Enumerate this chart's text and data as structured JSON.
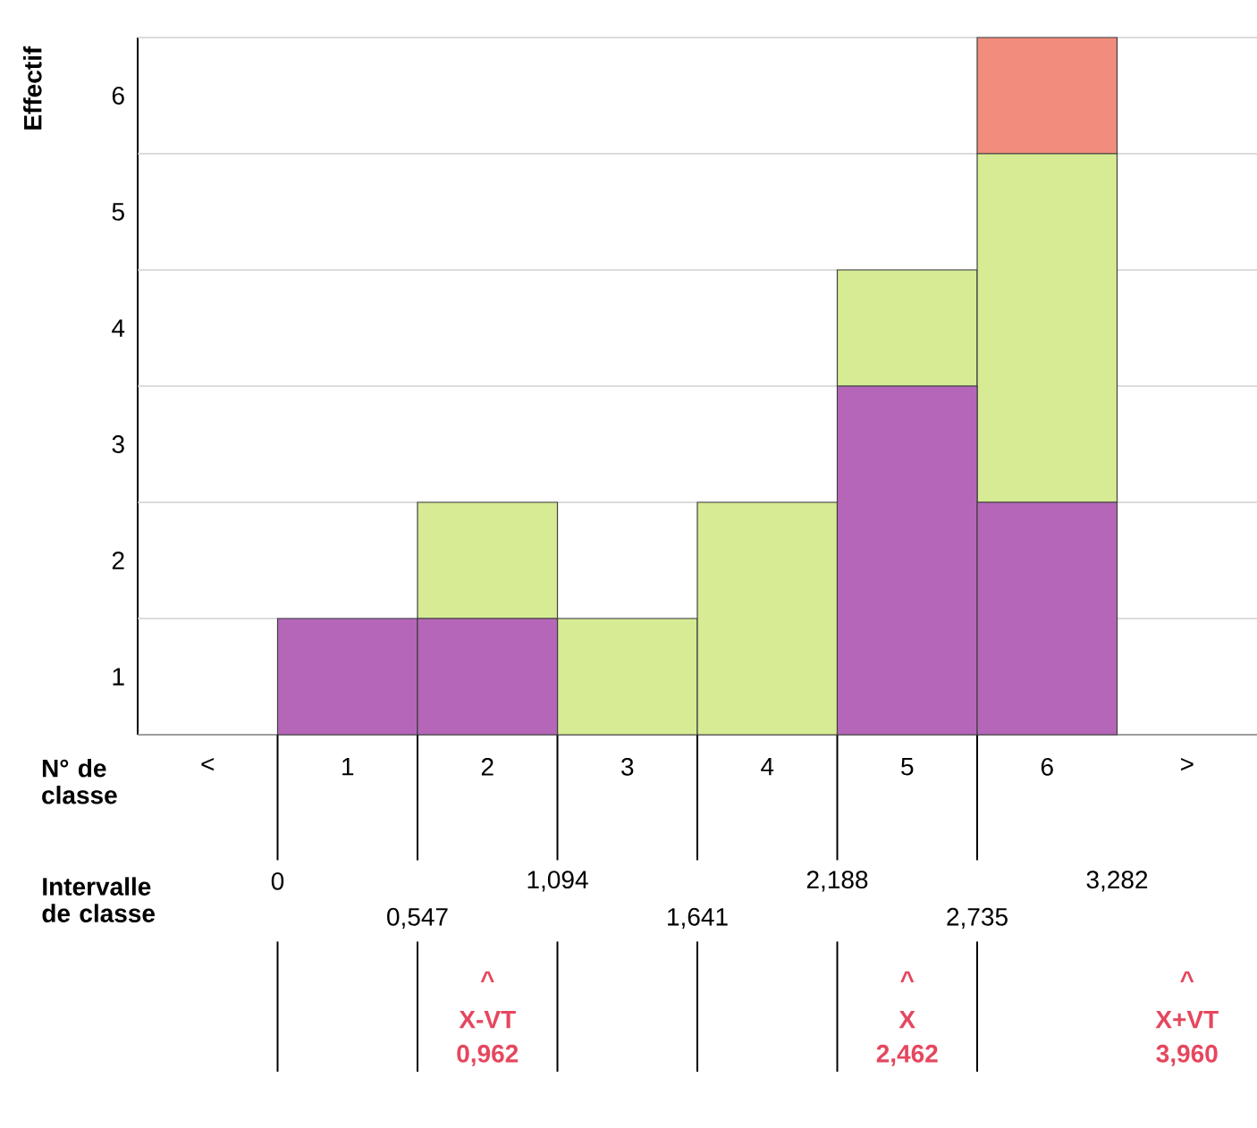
{
  "chart_data": {
    "type": "bar",
    "stacked": true,
    "xlabel": "N° de classe",
    "ylabel": "Effectif",
    "categories": [
      "<",
      "1",
      "2",
      "3",
      "4",
      "5",
      "6",
      ">"
    ],
    "series": [
      {
        "color": "#b566b8",
        "values": [
          0,
          1,
          1,
          0,
          0,
          3,
          2,
          0
        ]
      },
      {
        "color": "#d6eb94",
        "values": [
          0,
          0,
          1,
          1,
          2,
          1,
          3,
          0
        ]
      },
      {
        "color": "#f28c7c",
        "values": [
          0,
          0,
          0,
          0,
          0,
          0,
          1,
          0
        ]
      }
    ],
    "ylim": [
      0,
      6
    ],
    "yticks": [
      {
        "value": 0,
        "label": null
      },
      {
        "value": 0.5,
        "label": "1"
      },
      {
        "value": 1,
        "label": null
      },
      {
        "value": 1.5,
        "label": "2"
      },
      {
        "value": 2,
        "label": null
      },
      {
        "value": 2.5,
        "label": "3"
      },
      {
        "value": 3,
        "label": null
      },
      {
        "value": 3.5,
        "label": "4"
      },
      {
        "value": 4,
        "label": null
      },
      {
        "value": 4.5,
        "label": "5"
      },
      {
        "value": 5,
        "label": null
      },
      {
        "value": 5.5,
        "label": "6"
      },
      {
        "value": 6,
        "label": null
      }
    ],
    "grid": "y",
    "annotations": [
      "Intervalle de classe",
      "0",
      "0,547",
      "1,094",
      "1,641",
      "2,188",
      "2,735",
      "3,282",
      "^",
      "X-VT",
      "0,962",
      "^",
      "X",
      "2,462",
      "^",
      "X+VT",
      "3,960"
    ]
  }
}
